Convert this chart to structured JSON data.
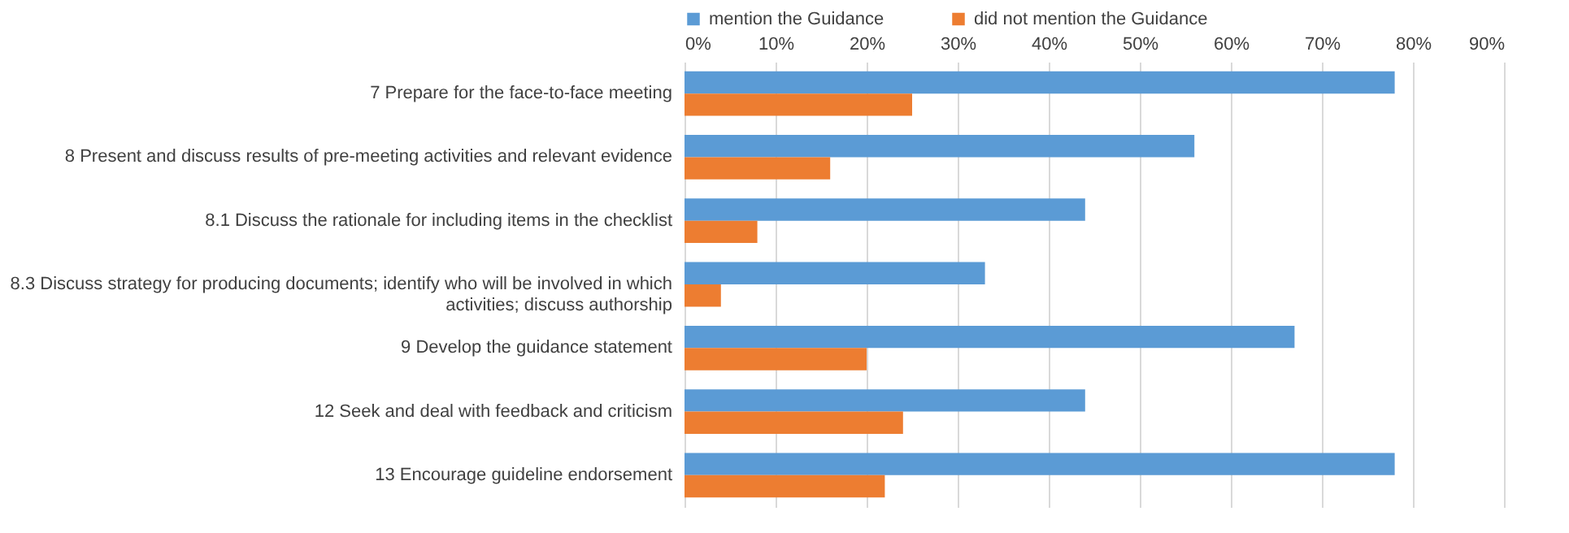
{
  "chart_data": {
    "type": "bar",
    "orientation": "horizontal",
    "categories": [
      "7  Prepare for the face-to-face meeting",
      "8 Present and discuss results of pre-meeting activities and relevant evidence",
      "8.1 Discuss the rationale for including items in the checklist",
      "8.3 Discuss strategy for producing documents; identify who will be involved in which activities; discuss authorship",
      "9 Develop the guidance statement",
      "12 Seek and deal with feedback and criticism",
      "13 Encourage guideline endorsement"
    ],
    "series": [
      {
        "name": "mention the Guidance",
        "color": "#5b9bd5",
        "values": [
          78,
          56,
          44,
          33,
          67,
          44,
          78
        ]
      },
      {
        "name": "did not mention  the Guidance",
        "color": "#ed7d31",
        "values": [
          25,
          16,
          8,
          4,
          20,
          24,
          22
        ]
      }
    ],
    "xlim": [
      0,
      90
    ],
    "xticks": [
      {
        "value": 0,
        "label": "0%"
      },
      {
        "value": 10,
        "label": "10%"
      },
      {
        "value": 20,
        "label": "20%"
      },
      {
        "value": 30,
        "label": "30%"
      },
      {
        "value": 40,
        "label": "40%"
      },
      {
        "value": 50,
        "label": "50%"
      },
      {
        "value": 60,
        "label": "60%"
      },
      {
        "value": 70,
        "label": "70%"
      },
      {
        "value": 80,
        "label": "80%"
      },
      {
        "value": 90,
        "label": "90%"
      }
    ],
    "grid": "x",
    "legend": "top"
  }
}
